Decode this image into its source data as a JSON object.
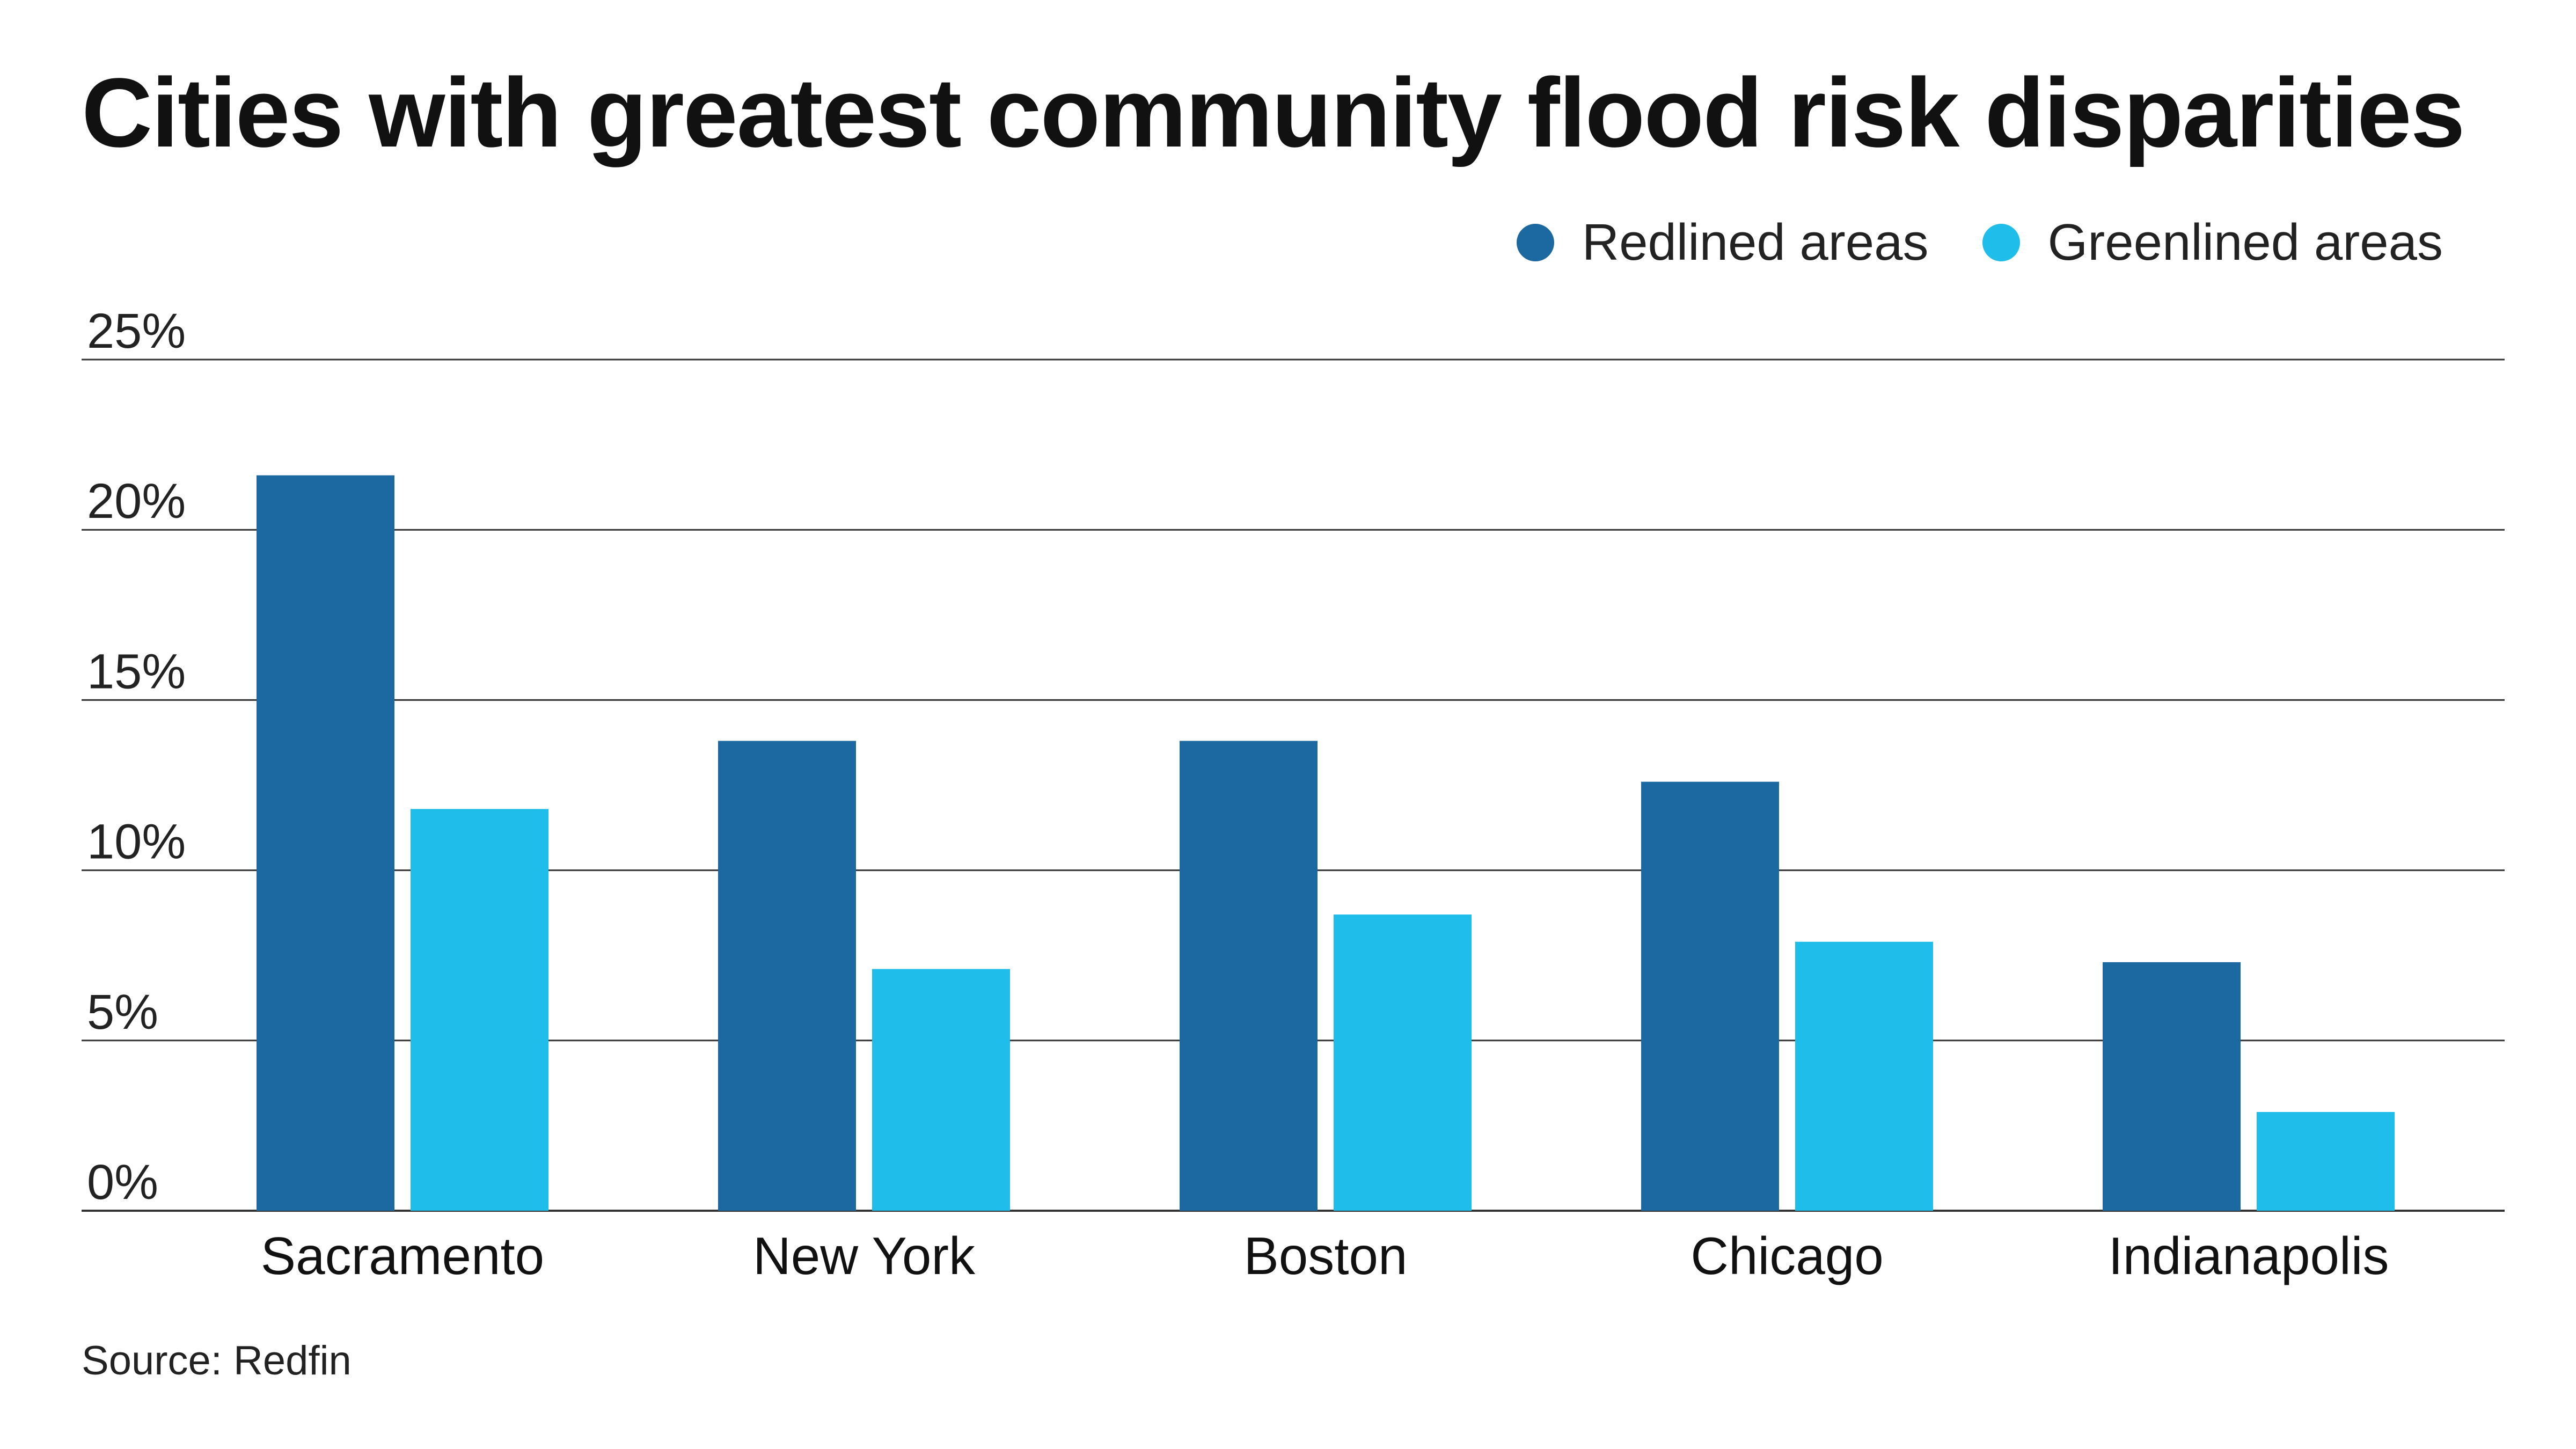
{
  "colors": {
    "redlined": "#1b69a0",
    "greenlined": "#1ebdea",
    "gridline": "#333333",
    "text": "#111111"
  },
  "source": "Source: Redfin",
  "chart_data": {
    "type": "bar",
    "title": "Cities with greatest community flood risk disparities",
    "xlabel": "",
    "ylabel": "",
    "ylim": [
      0,
      25
    ],
    "yticks": [
      0,
      5,
      10,
      15,
      20,
      25
    ],
    "ytick_labels": [
      "0%",
      "5%",
      "10%",
      "15%",
      "20%",
      "25%"
    ],
    "grid": true,
    "legend_position": "top-right",
    "categories": [
      "Sacramento",
      "New York",
      "Boston",
      "Chicago",
      "Indianapolis"
    ],
    "series": [
      {
        "name": "Redlined areas",
        "color": "#1b69a0",
        "values": [
          21.6,
          13.8,
          13.8,
          12.6,
          7.3
        ]
      },
      {
        "name": "Greenlined areas",
        "color": "#1ebdea",
        "values": [
          11.8,
          7.1,
          8.7,
          7.9,
          2.9
        ]
      }
    ]
  }
}
